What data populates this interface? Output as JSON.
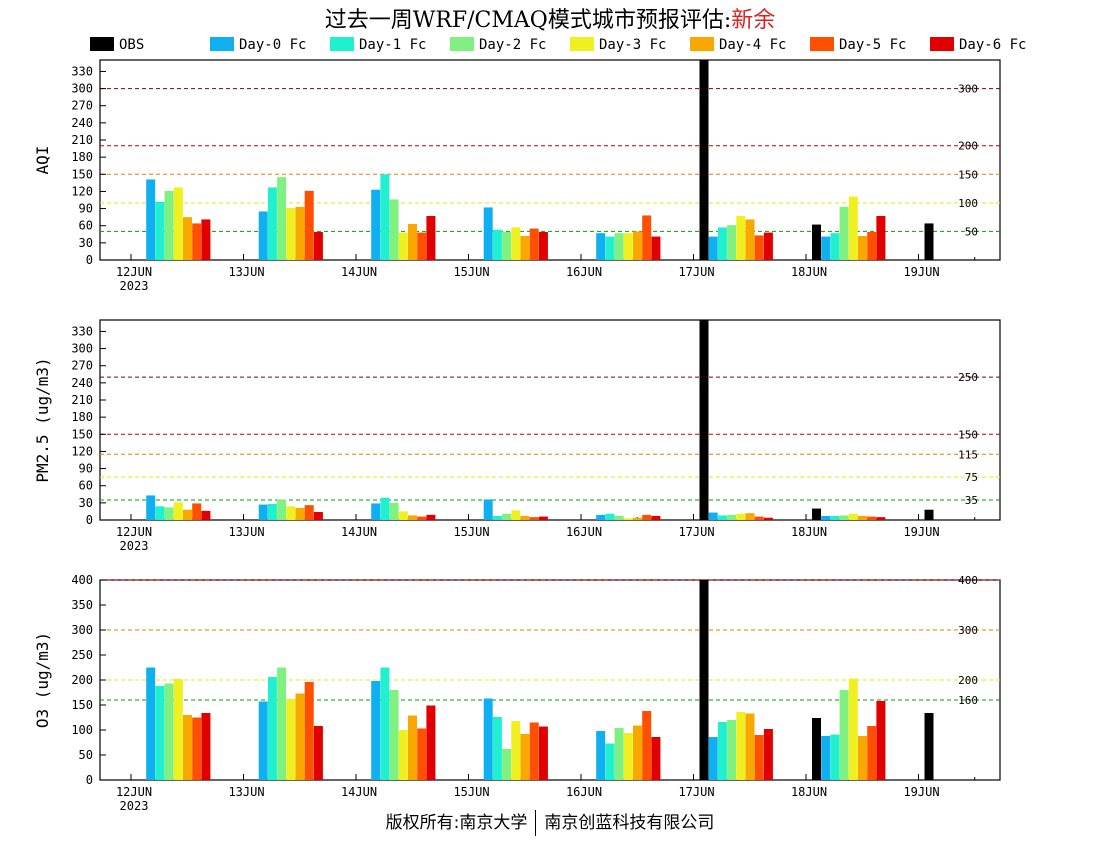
{
  "header": {
    "title": "过去一周WRF/CMAQ模式城市预报评估:",
    "city": "新余"
  },
  "footer": {
    "left": "版权所有:南京大学",
    "right": "南京创蓝科技有限公司"
  },
  "legend": [
    "OBS",
    "Day-0 Fc",
    "Day-1 Fc",
    "Day-2 Fc",
    "Day-3 Fc",
    "Day-4 Fc",
    "Day-5 Fc",
    "Day-6 Fc"
  ],
  "colors": {
    "series": [
      "#000000",
      "#10b0f0",
      "#20f0d0",
      "#80f080",
      "#f0f020",
      "#f8a800",
      "#ff5000",
      "#e00000"
    ],
    "line_green": "#00a000",
    "line_yellow": "#e8e800",
    "line_orange": "#e08000",
    "line_red": "#c00000",
    "line_darkred": "#800000"
  },
  "chart_data": [
    {
      "type": "bar",
      "ylabel": "AQI",
      "ylim": [
        0,
        350
      ],
      "yticks": [
        "0",
        "30",
        "60",
        "90",
        "120",
        "150",
        "180",
        "210",
        "240",
        "270",
        "300",
        "330"
      ],
      "categories": [
        "12JUN",
        "13JUN",
        "14JUN",
        "15JUN",
        "16JUN",
        "17JUN",
        "18JUN",
        "19JUN"
      ],
      "year": "2023",
      "reference_lines": [
        {
          "value": 50,
          "label": "50",
          "color": "green"
        },
        {
          "value": 100,
          "label": "100",
          "color": "yellow"
        },
        {
          "value": 150,
          "label": "150",
          "color": "orange"
        },
        {
          "value": 200,
          "label": "200",
          "color": "red"
        },
        {
          "value": 300,
          "label": "300",
          "color": "darkred"
        }
      ],
      "series": [
        {
          "name": "OBS",
          "values": [
            null,
            null,
            null,
            null,
            null,
            350,
            62,
            64
          ]
        },
        {
          "name": "Day-0 Fc",
          "values": [
            141,
            85,
            123,
            92,
            47,
            41,
            41,
            null
          ]
        },
        {
          "name": "Day-1 Fc",
          "values": [
            102,
            127,
            150,
            53,
            41,
            57,
            47,
            null
          ]
        },
        {
          "name": "Day-2 Fc",
          "values": [
            121,
            145,
            106,
            49,
            47,
            61,
            93,
            null
          ]
        },
        {
          "name": "Day-3 Fc",
          "values": [
            127,
            91,
            48,
            57,
            47,
            77,
            111,
            null
          ]
        },
        {
          "name": "Day-4 Fc",
          "values": [
            75,
            93,
            63,
            42,
            50,
            71,
            42,
            null
          ]
        },
        {
          "name": "Day-5 Fc",
          "values": [
            64,
            121,
            48,
            55,
            78,
            43,
            49,
            null
          ]
        },
        {
          "name": "Day-6 Fc",
          "values": [
            71,
            49,
            77,
            49,
            41,
            48,
            77,
            null
          ]
        }
      ]
    },
    {
      "type": "bar",
      "ylabel": "PM2.5 (ug/m3)",
      "ylim": [
        0,
        350
      ],
      "yticks": [
        "0",
        "30",
        "60",
        "90",
        "120",
        "150",
        "180",
        "210",
        "240",
        "270",
        "300",
        "330"
      ],
      "categories": [
        "12JUN",
        "13JUN",
        "14JUN",
        "15JUN",
        "16JUN",
        "17JUN",
        "18JUN",
        "19JUN"
      ],
      "year": "2023",
      "reference_lines": [
        {
          "value": 35,
          "label": "35",
          "color": "green"
        },
        {
          "value": 75,
          "label": "75",
          "color": "yellow"
        },
        {
          "value": 115,
          "label": "115",
          "color": "orange"
        },
        {
          "value": 150,
          "label": "150",
          "color": "red"
        },
        {
          "value": 250,
          "label": "250",
          "color": "darkred"
        }
      ],
      "series": [
        {
          "name": "OBS",
          "values": [
            null,
            null,
            null,
            null,
            null,
            350,
            20,
            18
          ]
        },
        {
          "name": "Day-0 Fc",
          "values": [
            43,
            27,
            29,
            36,
            9,
            13,
            7,
            null
          ]
        },
        {
          "name": "Day-1 Fc",
          "values": [
            24,
            28,
            39,
            7,
            11,
            8,
            7,
            null
          ]
        },
        {
          "name": "Day-2 Fc",
          "values": [
            22,
            36,
            30,
            11,
            7,
            9,
            8,
            null
          ]
        },
        {
          "name": "Day-3 Fc",
          "values": [
            31,
            24,
            15,
            17,
            3,
            11,
            11,
            null
          ]
        },
        {
          "name": "Day-4 Fc",
          "values": [
            18,
            21,
            8,
            7,
            4,
            12,
            7,
            null
          ]
        },
        {
          "name": "Day-5 Fc",
          "values": [
            29,
            26,
            6,
            5,
            9,
            6,
            6,
            null
          ]
        },
        {
          "name": "Day-6 Fc",
          "values": [
            16,
            14,
            9,
            6,
            7,
            4,
            5,
            null
          ]
        }
      ]
    },
    {
      "type": "bar",
      "ylabel": "O3 (ug/m3)",
      "ylim": [
        0,
        400
      ],
      "yticks": [
        "0",
        "50",
        "100",
        "150",
        "200",
        "250",
        "300",
        "350",
        "400"
      ],
      "categories": [
        "12JUN",
        "13JUN",
        "14JUN",
        "15JUN",
        "16JUN",
        "17JUN",
        "18JUN",
        "19JUN"
      ],
      "year": "2023",
      "reference_lines": [
        {
          "value": 160,
          "label": "160",
          "color": "green"
        },
        {
          "value": 200,
          "label": "200",
          "color": "yellow"
        },
        {
          "value": 300,
          "label": "300",
          "color": "orange"
        },
        {
          "value": 400,
          "label": "400",
          "color": "red"
        }
      ],
      "series": [
        {
          "name": "OBS",
          "values": [
            null,
            null,
            null,
            null,
            null,
            400,
            124,
            134
          ]
        },
        {
          "name": "Day-0 Fc",
          "values": [
            225,
            157,
            198,
            163,
            98,
            86,
            88,
            null
          ]
        },
        {
          "name": "Day-1 Fc",
          "values": [
            188,
            206,
            225,
            126,
            73,
            116,
            91,
            null
          ]
        },
        {
          "name": "Day-2 Fc",
          "values": [
            193,
            225,
            180,
            62,
            104,
            120,
            180,
            null
          ]
        },
        {
          "name": "Day-3 Fc",
          "values": [
            202,
            162,
            100,
            118,
            94,
            136,
            203,
            null
          ]
        },
        {
          "name": "Day-4 Fc",
          "values": [
            130,
            173,
            129,
            92,
            109,
            133,
            88,
            null
          ]
        },
        {
          "name": "Day-5 Fc",
          "values": [
            125,
            196,
            103,
            115,
            138,
            90,
            108,
            null
          ]
        },
        {
          "name": "Day-6 Fc",
          "values": [
            134,
            108,
            149,
            107,
            86,
            102,
            158,
            null
          ]
        }
      ]
    }
  ]
}
